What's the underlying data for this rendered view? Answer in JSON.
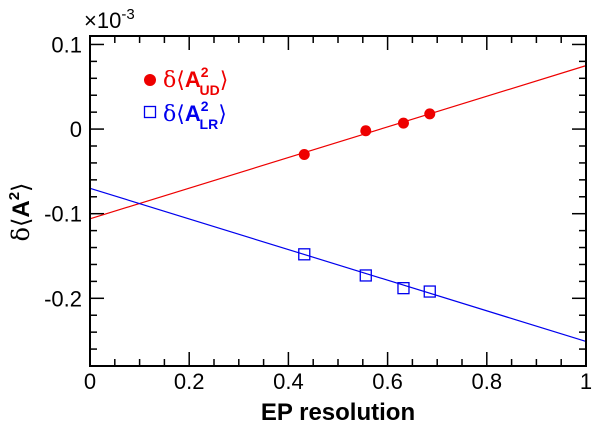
{
  "chart_data": {
    "type": "scatter",
    "xlabel": "EP resolution",
    "ylabel_prefix": "δ⟨",
    "ylabel_main": "A",
    "ylabel_sup": "2",
    "ylabel_suffix": "⟩",
    "scale_label": "×10",
    "scale_exp": "-3",
    "xlim": [
      0,
      1
    ],
    "ylim": [
      -0.28,
      0.11
    ],
    "x_ticks": [
      0,
      0.2,
      0.4,
      0.6,
      0.8,
      1
    ],
    "x_tick_labels": [
      "0",
      "0.2",
      "0.4",
      "0.6",
      "0.8",
      "1"
    ],
    "y_ticks": [
      -0.2,
      -0.1,
      0,
      0.1
    ],
    "y_tick_labels": [
      "-0.2",
      "-0.1",
      "0",
      "0.1"
    ],
    "legend_position": "top-left",
    "series": [
      {
        "legend_prefix": "δ⟨",
        "legend_main": "A",
        "legend_sup": "2",
        "legend_sub": "UD",
        "legend_suffix": "⟩",
        "color": "#ee0000",
        "marker": "filled-circle",
        "x": [
          0.432,
          0.556,
          0.632,
          0.685
        ],
        "y": [
          -0.03,
          -0.002,
          0.007,
          0.018
        ],
        "fit_line": {
          "x": [
            0,
            1
          ],
          "y": [
            -0.106,
            0.075
          ]
        }
      },
      {
        "legend_prefix": "δ⟨",
        "legend_main": "A",
        "legend_sup": "2",
        "legend_sub": "LR",
        "legend_suffix": "⟩",
        "color": "#0000ee",
        "marker": "open-square",
        "x": [
          0.432,
          0.556,
          0.632,
          0.685
        ],
        "y": [
          -0.148,
          -0.173,
          -0.188,
          -0.192
        ],
        "fit_line": {
          "x": [
            0,
            1
          ],
          "y": [
            -0.07,
            -0.251
          ]
        }
      }
    ]
  }
}
